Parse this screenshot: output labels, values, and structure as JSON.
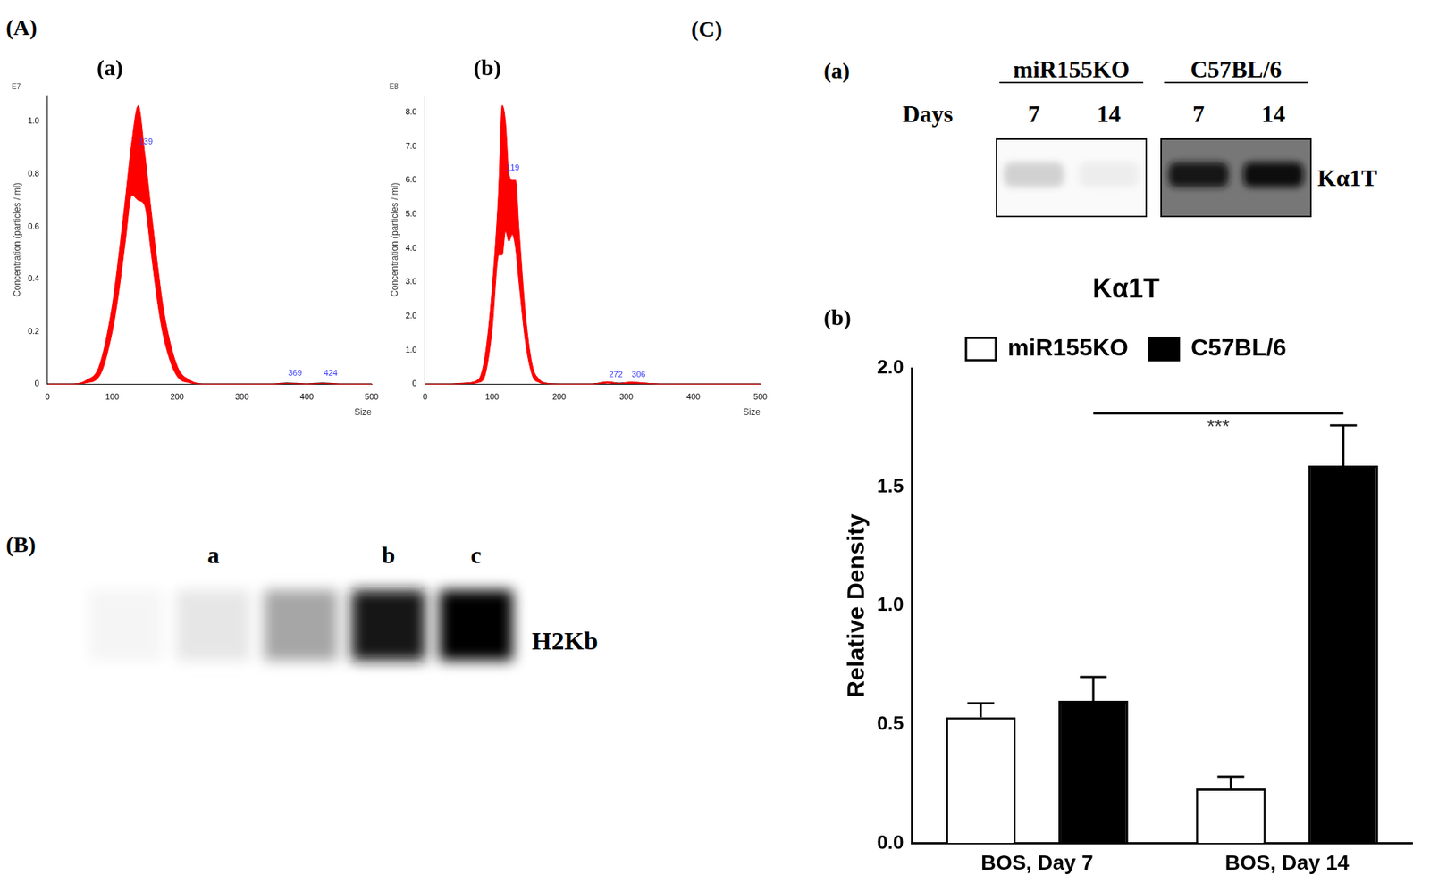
{
  "panel_labels": {
    "A": "(A)",
    "B": "(B)",
    "C": "(C)"
  },
  "chart_data": [
    {
      "panel": "(a)",
      "type": "line",
      "x_label": "Size",
      "y_label": "Concentration (particles / ml)",
      "y_exponent": "E7",
      "x": [
        0,
        20,
        40,
        60,
        80,
        100,
        110,
        120,
        130,
        140,
        150,
        160,
        170,
        180,
        200,
        220,
        240,
        260,
        280,
        300,
        350,
        369,
        400,
        424,
        450,
        500
      ],
      "series": [
        {
          "color": "#000000",
          "values": [
            0,
            0,
            0,
            0.01,
            0.05,
            0.25,
            0.42,
            0.62,
            0.82,
            0.88,
            0.78,
            0.58,
            0.38,
            0.22,
            0.05,
            0.01,
            0,
            0,
            0,
            0,
            0,
            0.003,
            0,
            0.003,
            0,
            0
          ],
          "error": [
            0,
            0,
            0,
            0.005,
            0.02,
            0.05,
            0.07,
            0.08,
            0.1,
            0.18,
            0.1,
            0.08,
            0.07,
            0.05,
            0.02,
            0.005,
            0,
            0,
            0,
            0,
            0,
            0,
            0,
            0,
            0,
            0
          ]
        }
      ],
      "color": "#ff0000",
      "xlim": [
        0,
        500
      ],
      "xticks": [
        0,
        100,
        200,
        300,
        400,
        500
      ],
      "ylim": [
        0,
        1.1
      ],
      "yticks": [
        0,
        0.2,
        0.4,
        0.6,
        0.8,
        {
          "value": 1,
          "label": "1.0"
        }
      ],
      "annotations": [
        {
          "x": 139,
          "y": 0.9,
          "text": "139"
        },
        {
          "x": 369,
          "y": 0.02,
          "text": "369"
        },
        {
          "x": 424,
          "y": 0.02,
          "text": "424"
        }
      ],
      "grid": false
    },
    {
      "panel": "(b)",
      "type": "line",
      "x_label": "Size",
      "y_label": "Concentration (particles / ml)",
      "y_exponent": "E8",
      "x": [
        0,
        20,
        40,
        60,
        80,
        90,
        100,
        110,
        115,
        120,
        125,
        130,
        135,
        140,
        150,
        160,
        170,
        180,
        200,
        220,
        250,
        272,
        290,
        306,
        350,
        400,
        450,
        500
      ],
      "series": [
        {
          "color": "#000000",
          "values": [
            0,
            0,
            0,
            0.02,
            0.1,
            0.6,
            2.2,
            4.8,
            6.0,
            6.1,
            5.2,
            5.2,
            5.0,
            3.8,
            1.6,
            0.4,
            0.1,
            0.02,
            0,
            0,
            0,
            0.05,
            0.02,
            0.04,
            0,
            0,
            0,
            0
          ],
          "error": [
            0,
            0,
            0,
            0.01,
            0.05,
            0.3,
            0.6,
            1.0,
            2.2,
            1.6,
            1.0,
            0.8,
            1.0,
            0.8,
            0.4,
            0.15,
            0.05,
            0.01,
            0,
            0,
            0,
            0.02,
            0,
            0.02,
            0,
            0,
            0,
            0
          ]
        }
      ],
      "color": "#ff0000",
      "xlim": [
        0,
        500
      ],
      "xticks": [
        0,
        100,
        200,
        300,
        400,
        500
      ],
      "ylim": [
        0,
        8.5
      ],
      "yticks": [
        0,
        {
          "value": 1,
          "label": "1.0"
        },
        {
          "value": 2,
          "label": "2.0"
        },
        {
          "value": 3,
          "label": "3.0"
        },
        {
          "value": 4,
          "label": "4.0"
        },
        {
          "value": 5,
          "label": "5.0"
        },
        {
          "value": 6,
          "label": "6.0"
        },
        {
          "value": 7,
          "label": "7.0"
        },
        {
          "value": 8,
          "label": "8.0"
        }
      ],
      "annotations": [
        {
          "x": 119,
          "y": 6.2,
          "text": "119"
        },
        {
          "x": 272,
          "y": 0.1,
          "text": "272"
        },
        {
          "x": 306,
          "y": 0.1,
          "text": "306"
        }
      ],
      "grid": false
    },
    {
      "panel": "(b)",
      "type": "bar",
      "title": "Kα1T",
      "y_label": "Relative Density",
      "categories": [
        "BOS, Day 7",
        "BOS, Day 14"
      ],
      "series": [
        {
          "name": "miR155KO",
          "color": "#ffffff",
          "values": [
            0.53,
            0.23
          ],
          "error": [
            0.06,
            0.05
          ]
        },
        {
          "name": "C57BL/6",
          "color": "#000000",
          "values": [
            0.6,
            1.59
          ],
          "error": [
            0.1,
            0.17
          ]
        }
      ],
      "ylim": [
        0,
        2
      ],
      "yticks": [
        {
          "value": 0,
          "label": "0.0"
        },
        {
          "value": 0.5,
          "label": "0.5"
        },
        {
          "value": 1,
          "label": "1.0"
        },
        {
          "value": 1.5,
          "label": "1.5"
        },
        {
          "value": 2,
          "label": "2.0"
        }
      ],
      "legend": "top",
      "grid": false,
      "significance": [
        {
          "text": "***",
          "series": "C57BL/6",
          "from": "BOS, Day 7",
          "to": "BOS, Day 14",
          "y": 1.81
        }
      ]
    }
  ],
  "blots": [
    {
      "label": "H2Kb",
      "lanes": [
        {
          "label": null,
          "intensity": 0.04
        },
        {
          "label": "a",
          "intensity": 0.1
        },
        {
          "label": null,
          "intensity": 0.35
        },
        {
          "label": "b",
          "intensity": 0.92
        },
        {
          "label": "c",
          "intensity": 1.0
        }
      ]
    },
    {
      "panel": "(a)",
      "label": "Kα1T",
      "row_label": "Days",
      "groups": [
        {
          "name": "miR155KO",
          "lanes": [
            {
              "label": "7",
              "intensity": 0.18
            },
            {
              "label": "14",
              "intensity": 0.07
            }
          ]
        },
        {
          "name": "C57BL/6",
          "lanes": [
            {
              "label": "7",
              "intensity": 0.9
            },
            {
              "label": "14",
              "intensity": 0.97
            }
          ]
        }
      ]
    }
  ]
}
